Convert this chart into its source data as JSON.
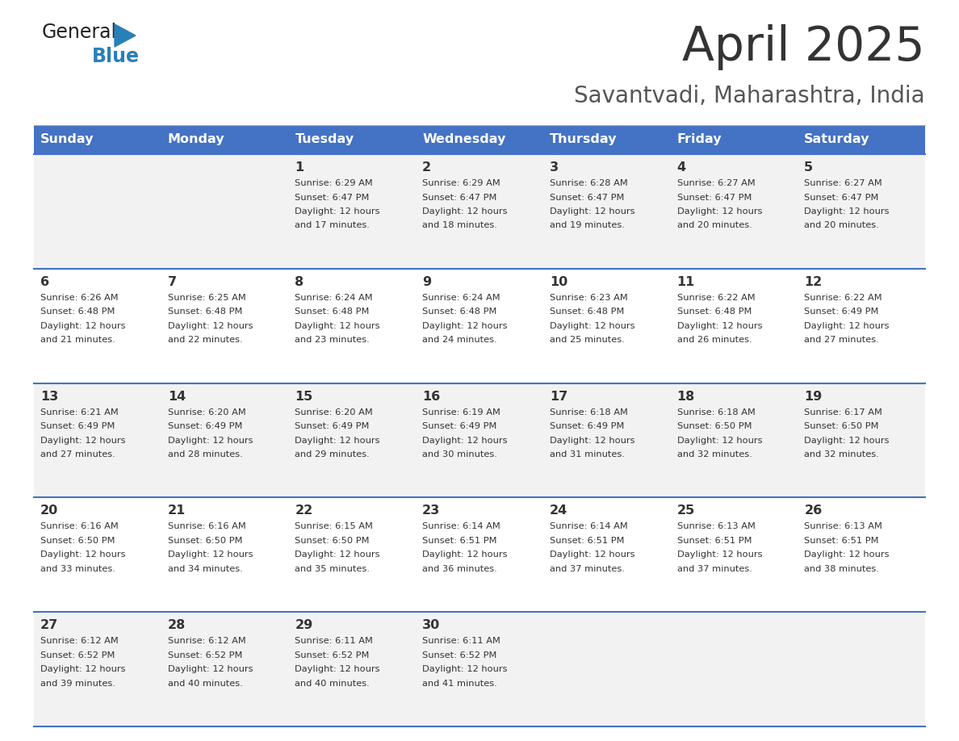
{
  "title": "April 2025",
  "subtitle": "Savantvadi, Maharashtra, India",
  "days_of_week": [
    "Sunday",
    "Monday",
    "Tuesday",
    "Wednesday",
    "Thursday",
    "Friday",
    "Saturday"
  ],
  "header_bg": "#4472C4",
  "header_text": "#FFFFFF",
  "row_bg_light": "#F2F2F2",
  "row_bg_white": "#FFFFFF",
  "border_color": "#4472C4",
  "text_color": "#333333",
  "subtitle_color": "#555555",
  "calendar": [
    [
      {
        "day": "",
        "sunrise": "",
        "sunset": "",
        "daylight": ""
      },
      {
        "day": "",
        "sunrise": "",
        "sunset": "",
        "daylight": ""
      },
      {
        "day": "1",
        "sunrise": "6:29 AM",
        "sunset": "6:47 PM",
        "daylight": "12 hours and 17 minutes."
      },
      {
        "day": "2",
        "sunrise": "6:29 AM",
        "sunset": "6:47 PM",
        "daylight": "12 hours and 18 minutes."
      },
      {
        "day": "3",
        "sunrise": "6:28 AM",
        "sunset": "6:47 PM",
        "daylight": "12 hours and 19 minutes."
      },
      {
        "day": "4",
        "sunrise": "6:27 AM",
        "sunset": "6:47 PM",
        "daylight": "12 hours and 20 minutes."
      },
      {
        "day": "5",
        "sunrise": "6:27 AM",
        "sunset": "6:47 PM",
        "daylight": "12 hours and 20 minutes."
      }
    ],
    [
      {
        "day": "6",
        "sunrise": "6:26 AM",
        "sunset": "6:48 PM",
        "daylight": "12 hours and 21 minutes."
      },
      {
        "day": "7",
        "sunrise": "6:25 AM",
        "sunset": "6:48 PM",
        "daylight": "12 hours and 22 minutes."
      },
      {
        "day": "8",
        "sunrise": "6:24 AM",
        "sunset": "6:48 PM",
        "daylight": "12 hours and 23 minutes."
      },
      {
        "day": "9",
        "sunrise": "6:24 AM",
        "sunset": "6:48 PM",
        "daylight": "12 hours and 24 minutes."
      },
      {
        "day": "10",
        "sunrise": "6:23 AM",
        "sunset": "6:48 PM",
        "daylight": "12 hours and 25 minutes."
      },
      {
        "day": "11",
        "sunrise": "6:22 AM",
        "sunset": "6:48 PM",
        "daylight": "12 hours and 26 minutes."
      },
      {
        "day": "12",
        "sunrise": "6:22 AM",
        "sunset": "6:49 PM",
        "daylight": "12 hours and 27 minutes."
      }
    ],
    [
      {
        "day": "13",
        "sunrise": "6:21 AM",
        "sunset": "6:49 PM",
        "daylight": "12 hours and 27 minutes."
      },
      {
        "day": "14",
        "sunrise": "6:20 AM",
        "sunset": "6:49 PM",
        "daylight": "12 hours and 28 minutes."
      },
      {
        "day": "15",
        "sunrise": "6:20 AM",
        "sunset": "6:49 PM",
        "daylight": "12 hours and 29 minutes."
      },
      {
        "day": "16",
        "sunrise": "6:19 AM",
        "sunset": "6:49 PM",
        "daylight": "12 hours and 30 minutes."
      },
      {
        "day": "17",
        "sunrise": "6:18 AM",
        "sunset": "6:49 PM",
        "daylight": "12 hours and 31 minutes."
      },
      {
        "day": "18",
        "sunrise": "6:18 AM",
        "sunset": "6:50 PM",
        "daylight": "12 hours and 32 minutes."
      },
      {
        "day": "19",
        "sunrise": "6:17 AM",
        "sunset": "6:50 PM",
        "daylight": "12 hours and 32 minutes."
      }
    ],
    [
      {
        "day": "20",
        "sunrise": "6:16 AM",
        "sunset": "6:50 PM",
        "daylight": "12 hours and 33 minutes."
      },
      {
        "day": "21",
        "sunrise": "6:16 AM",
        "sunset": "6:50 PM",
        "daylight": "12 hours and 34 minutes."
      },
      {
        "day": "22",
        "sunrise": "6:15 AM",
        "sunset": "6:50 PM",
        "daylight": "12 hours and 35 minutes."
      },
      {
        "day": "23",
        "sunrise": "6:14 AM",
        "sunset": "6:51 PM",
        "daylight": "12 hours and 36 minutes."
      },
      {
        "day": "24",
        "sunrise": "6:14 AM",
        "sunset": "6:51 PM",
        "daylight": "12 hours and 37 minutes."
      },
      {
        "day": "25",
        "sunrise": "6:13 AM",
        "sunset": "6:51 PM",
        "daylight": "12 hours and 37 minutes."
      },
      {
        "day": "26",
        "sunrise": "6:13 AM",
        "sunset": "6:51 PM",
        "daylight": "12 hours and 38 minutes."
      }
    ],
    [
      {
        "day": "27",
        "sunrise": "6:12 AM",
        "sunset": "6:52 PM",
        "daylight": "12 hours and 39 minutes."
      },
      {
        "day": "28",
        "sunrise": "6:12 AM",
        "sunset": "6:52 PM",
        "daylight": "12 hours and 40 minutes."
      },
      {
        "day": "29",
        "sunrise": "6:11 AM",
        "sunset": "6:52 PM",
        "daylight": "12 hours and 40 minutes."
      },
      {
        "day": "30",
        "sunrise": "6:11 AM",
        "sunset": "6:52 PM",
        "daylight": "12 hours and 41 minutes."
      },
      {
        "day": "",
        "sunrise": "",
        "sunset": "",
        "daylight": ""
      },
      {
        "day": "",
        "sunrise": "",
        "sunset": "",
        "daylight": ""
      },
      {
        "day": "",
        "sunrise": "",
        "sunset": "",
        "daylight": ""
      }
    ]
  ],
  "logo_color_general": "#222222",
  "logo_color_blue": "#2980B9",
  "logo_triangle_color": "#2980B9"
}
